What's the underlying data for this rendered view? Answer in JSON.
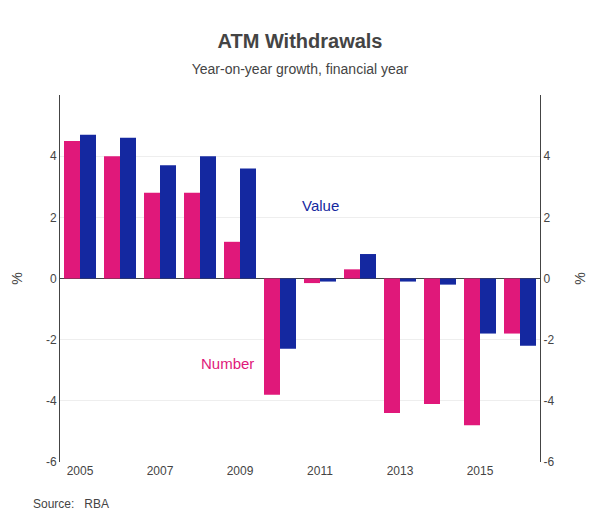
{
  "chart_data": {
    "type": "bar",
    "title": "ATM Withdrawals",
    "subtitle": "Year-on-year growth, financial year",
    "annotations": [
      "Source:   RBA"
    ],
    "categories": [
      "2005",
      null,
      "2007",
      null,
      "2009",
      null,
      "2011",
      null,
      "2013",
      null,
      "2015",
      null
    ],
    "series": [
      {
        "name": "Number",
        "color": "#e0187a",
        "values": [
          4.5,
          4.0,
          2.8,
          2.8,
          1.2,
          -3.8,
          -0.15,
          0.3,
          -4.4,
          -4.1,
          -4.8,
          -1.8
        ]
      },
      {
        "name": "Value",
        "color": "#1428a0",
        "values": [
          4.7,
          4.6,
          3.7,
          4.0,
          3.6,
          -2.3,
          -0.1,
          0.8,
          -0.1,
          -0.2,
          -1.8,
          -2.2
        ]
      }
    ],
    "ylabel": "%",
    "y2label": "%",
    "ylim": [
      -6,
      6
    ],
    "yticks": [
      -6,
      -4,
      -2,
      0,
      2,
      4
    ],
    "y2lim": [
      -6,
      6
    ],
    "y2ticks": [
      -6,
      -4,
      -2,
      0,
      2,
      4
    ],
    "grid": true
  }
}
